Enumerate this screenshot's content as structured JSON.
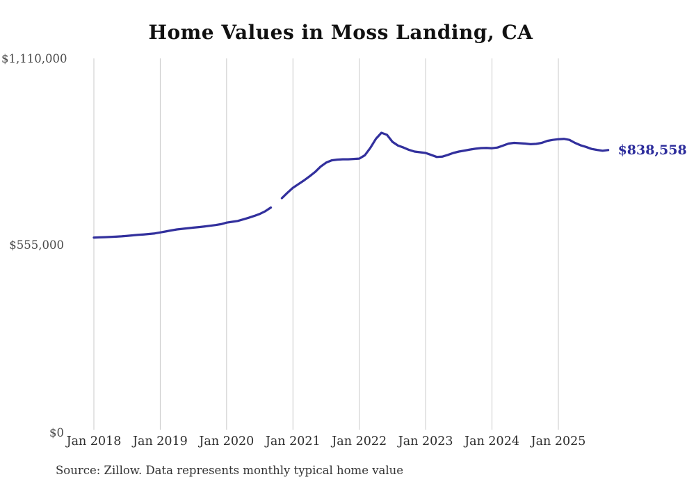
{
  "title": "Home Values in Moss Landing, CA",
  "source": "Source: Zillow. Data represents monthly typical home value",
  "end_label": "$838,558",
  "colors": {
    "background": "#ffffff",
    "line": "#32309d",
    "end_label_text": "#2b2b9b",
    "gridline": "#c9c9c9",
    "title_text": "#111111",
    "x_tick_text": "#2e2e2e",
    "y_tick_text": "#4a4a4a",
    "source_text": "#333333"
  },
  "chart_data": {
    "type": "line",
    "title": "Home Values in Moss Landing, CA",
    "series_name": "Typical home value",
    "x_unit": "month",
    "x_start": "2018-01",
    "x_end": "2025-10",
    "ylim": [
      0,
      1110000
    ],
    "grid": "vertical-only",
    "legend": "none",
    "missing_months": [
      "2020-10"
    ],
    "last_value": 838558,
    "last_value_label": "$838,558",
    "y_ticks": [
      {
        "label": "$0",
        "value": 0
      },
      {
        "label": "$555,000",
        "value": 555000
      },
      {
        "label": "$1,110,000",
        "value": 1110000
      }
    ],
    "x_ticks": [
      {
        "label": "Jan 2018",
        "month_index": 0
      },
      {
        "label": "Jan 2019",
        "month_index": 12
      },
      {
        "label": "Jan 2020",
        "month_index": 24
      },
      {
        "label": "Jan 2021",
        "month_index": 36
      },
      {
        "label": "Jan 2022",
        "month_index": 48
      },
      {
        "label": "Jan 2023",
        "month_index": 60
      },
      {
        "label": "Jan 2024",
        "month_index": 72
      },
      {
        "label": "Jan 2025",
        "month_index": 84
      }
    ],
    "values": [
      577400,
      578000,
      578600,
      579300,
      580200,
      581200,
      582500,
      584000,
      585500,
      586800,
      588200,
      589800,
      592800,
      595600,
      598700,
      601700,
      603500,
      605200,
      607000,
      608800,
      610600,
      612600,
      614700,
      617500,
      622000,
      624500,
      627000,
      631500,
      636500,
      642000,
      648000,
      656000,
      667000,
      null,
      695000,
      711000,
      726000,
      737000,
      748000,
      760000,
      773000,
      789000,
      801000,
      808000,
      810000,
      811000,
      811000,
      812000,
      813000,
      823000,
      845000,
      872000,
      890000,
      884000,
      863000,
      852000,
      846000,
      839000,
      834000,
      832000,
      830000,
      824000,
      818000,
      819000,
      824000,
      830000,
      834000,
      837000,
      840000,
      842500,
      844500,
      845000,
      844000,
      846000,
      852000,
      858000,
      860000,
      859000,
      858000,
      856000,
      857000,
      860000,
      866000,
      869000,
      871000,
      872000,
      869000,
      860000,
      853000,
      848000,
      842000,
      839000,
      836500,
      838558
    ]
  }
}
